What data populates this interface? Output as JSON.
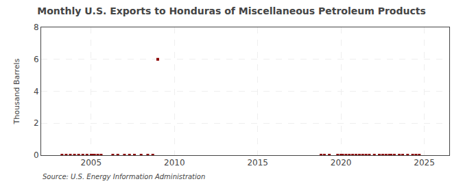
{
  "chart_data": {
    "type": "scatter",
    "title": "Monthly U.S. Exports to Honduras of Miscellaneous Petroleum Products",
    "ylabel": "Thousand Barrels",
    "annotations": [
      "Source: U.S. Energy Information Administration"
    ],
    "x": [
      2003.25,
      2003.5,
      2003.75,
      2004.0,
      2004.25,
      2004.5,
      2004.75,
      2005.0,
      2005.1,
      2005.2,
      2005.4,
      2005.6,
      2006.3,
      2006.6,
      2007.0,
      2007.3,
      2007.6,
      2008.0,
      2008.4,
      2008.7,
      2009.0,
      2018.8,
      2019.0,
      2019.3,
      2019.8,
      2020.0,
      2020.1,
      2020.3,
      2020.5,
      2020.7,
      2020.9,
      2021.1,
      2021.3,
      2021.5,
      2021.7,
      2022.0,
      2022.3,
      2022.5,
      2022.7,
      2022.9,
      2023.0,
      2023.2,
      2023.5,
      2023.7,
      2024.0,
      2024.3,
      2024.5,
      2024.7
    ],
    "values": [
      0,
      0,
      0,
      0,
      0,
      0,
      0,
      0,
      0,
      0,
      0,
      0,
      0,
      0,
      0,
      0,
      0,
      0,
      0,
      0,
      6.0,
      0,
      0,
      0,
      0,
      0,
      0,
      0,
      0,
      0,
      0,
      0,
      0,
      0,
      0,
      0,
      0,
      0,
      0,
      0,
      0,
      0,
      0,
      0,
      0,
      0,
      0,
      0
    ],
    "color": "#8b0000",
    "marker": "square",
    "xlim": [
      2002.0,
      2026.5
    ],
    "ylim": [
      0,
      8
    ],
    "xticks": [
      2005,
      2010,
      2015,
      2020,
      2025
    ],
    "yticks": [
      0,
      2,
      4,
      6,
      8
    ],
    "grid": true
  }
}
